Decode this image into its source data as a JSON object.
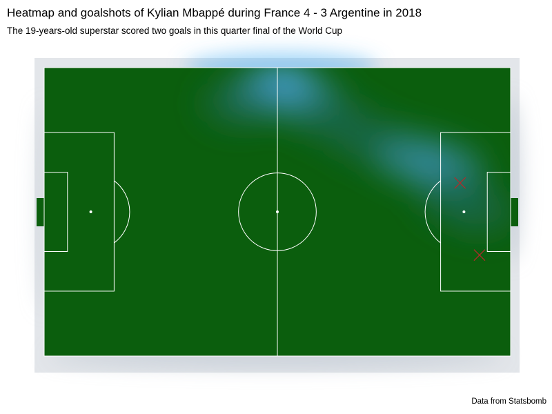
{
  "title": "Heatmap and goalshots of Kylian Mbappé during France 4 - 3 Argentine in 2018",
  "subtitle": "The 19-years-old superstar scored two goals in this quarter final of the World Cup",
  "caption": "Data from Statsbomb",
  "colors": {
    "pitch": "#0b5e0d",
    "lines": "#ffffff",
    "panel": "#e3e6ea",
    "heat_low": "#1e6a5c",
    "heat_high": "#52b2f2",
    "shot_marker": "#b22a2a"
  },
  "chart_data": {
    "type": "heatmap",
    "pitch": {
      "length": 120,
      "width": 80
    },
    "xlim": [
      0,
      120
    ],
    "ylim": [
      0,
      80
    ],
    "heat": [
      {
        "x": 61,
        "y": 76,
        "intensity": 1.0
      },
      {
        "x": 57,
        "y": 73,
        "intensity": 0.55
      },
      {
        "x": 66,
        "y": 72,
        "intensity": 0.5
      },
      {
        "x": 50,
        "y": 70,
        "intensity": 0.3
      },
      {
        "x": 74,
        "y": 66,
        "intensity": 0.35
      },
      {
        "x": 84,
        "y": 60,
        "intensity": 0.35
      },
      {
        "x": 95,
        "y": 55,
        "intensity": 0.5
      },
      {
        "x": 103,
        "y": 52,
        "intensity": 0.5
      },
      {
        "x": 106,
        "y": 44,
        "intensity": 0.3
      },
      {
        "x": 112,
        "y": 40,
        "intensity": 0.2
      }
    ],
    "shots": [
      {
        "x": 107,
        "y": 48,
        "marker": "x"
      },
      {
        "x": 112,
        "y": 28,
        "marker": "x"
      }
    ]
  }
}
